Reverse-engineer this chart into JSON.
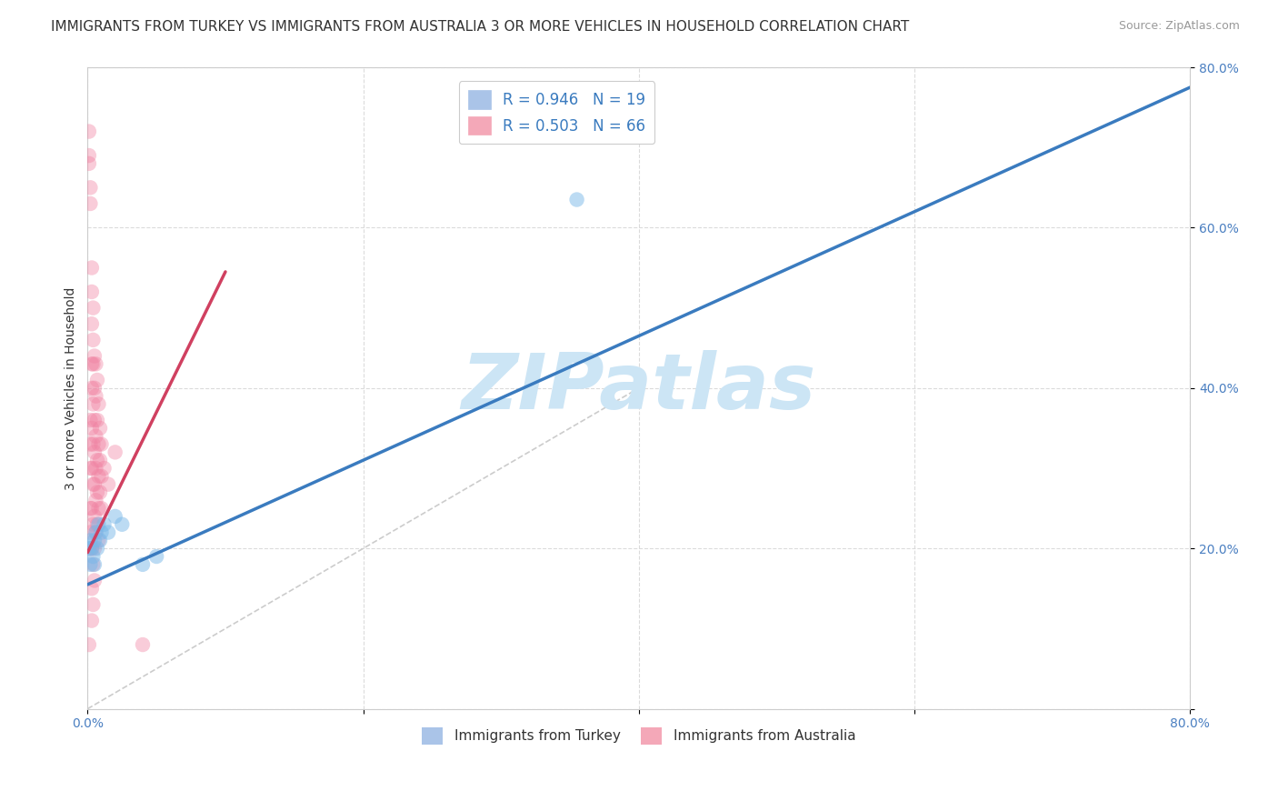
{
  "title": "IMMIGRANTS FROM TURKEY VS IMMIGRANTS FROM AUSTRALIA 3 OR MORE VEHICLES IN HOUSEHOLD CORRELATION CHART",
  "source": "Source: ZipAtlas.com",
  "ylabel": "3 or more Vehicles in Household",
  "xlim": [
    0.0,
    0.8
  ],
  "ylim": [
    0.0,
    0.8
  ],
  "xtick_positions": [
    0.0,
    0.2,
    0.4,
    0.6,
    0.8
  ],
  "ytick_positions": [
    0.0,
    0.2,
    0.4,
    0.6,
    0.8
  ],
  "xticklabels": [
    "0.0%",
    "",
    "",
    "",
    "80.0%"
  ],
  "yticklabels_right": [
    "",
    "20.0%",
    "40.0%",
    "60.0%",
    "80.0%"
  ],
  "legend_top": [
    {
      "label": "R = 0.946   N = 19",
      "color": "#aac4e8"
    },
    {
      "label": "R = 0.503   N = 66",
      "color": "#f4a8b8"
    }
  ],
  "legend_bottom": [
    {
      "label": "Immigrants from Turkey",
      "color": "#aac4e8"
    },
    {
      "label": "Immigrants from Australia",
      "color": "#f4a8b8"
    }
  ],
  "watermark_text": "ZIPatlas",
  "watermark_color": "#cce5f5",
  "turkey_color": "#7ab8e8",
  "australia_color": "#f080a0",
  "turkey_trend": {
    "x": [
      0.0,
      0.8
    ],
    "y": [
      0.155,
      0.775
    ]
  },
  "australia_trend": {
    "x": [
      0.0,
      0.1
    ],
    "y": [
      0.195,
      0.545
    ]
  },
  "ref_line": {
    "x": [
      0.0,
      0.4
    ],
    "y": [
      0.0,
      0.4
    ]
  },
  "turkey_points": [
    [
      0.001,
      0.2
    ],
    [
      0.002,
      0.21
    ],
    [
      0.002,
      0.18
    ],
    [
      0.003,
      0.2
    ],
    [
      0.004,
      0.19
    ],
    [
      0.005,
      0.21
    ],
    [
      0.005,
      0.18
    ],
    [
      0.006,
      0.22
    ],
    [
      0.007,
      0.2
    ],
    [
      0.008,
      0.23
    ],
    [
      0.009,
      0.21
    ],
    [
      0.01,
      0.22
    ],
    [
      0.012,
      0.23
    ],
    [
      0.015,
      0.22
    ],
    [
      0.02,
      0.24
    ],
    [
      0.025,
      0.23
    ],
    [
      0.04,
      0.18
    ],
    [
      0.05,
      0.19
    ],
    [
      0.355,
      0.635
    ]
  ],
  "australia_points": [
    [
      0.001,
      0.72
    ],
    [
      0.001,
      0.69
    ],
    [
      0.001,
      0.68
    ],
    [
      0.002,
      0.65
    ],
    [
      0.002,
      0.63
    ],
    [
      0.002,
      0.36
    ],
    [
      0.002,
      0.33
    ],
    [
      0.002,
      0.3
    ],
    [
      0.002,
      0.25
    ],
    [
      0.002,
      0.22
    ],
    [
      0.002,
      0.2
    ],
    [
      0.003,
      0.55
    ],
    [
      0.003,
      0.52
    ],
    [
      0.003,
      0.48
    ],
    [
      0.003,
      0.43
    ],
    [
      0.003,
      0.4
    ],
    [
      0.003,
      0.35
    ],
    [
      0.003,
      0.3
    ],
    [
      0.003,
      0.25
    ],
    [
      0.003,
      0.2
    ],
    [
      0.003,
      0.15
    ],
    [
      0.003,
      0.11
    ],
    [
      0.004,
      0.5
    ],
    [
      0.004,
      0.46
    ],
    [
      0.004,
      0.43
    ],
    [
      0.004,
      0.38
    ],
    [
      0.004,
      0.33
    ],
    [
      0.004,
      0.28
    ],
    [
      0.004,
      0.23
    ],
    [
      0.004,
      0.18
    ],
    [
      0.004,
      0.13
    ],
    [
      0.005,
      0.44
    ],
    [
      0.005,
      0.4
    ],
    [
      0.005,
      0.36
    ],
    [
      0.005,
      0.32
    ],
    [
      0.005,
      0.28
    ],
    [
      0.005,
      0.24
    ],
    [
      0.005,
      0.2
    ],
    [
      0.005,
      0.16
    ],
    [
      0.006,
      0.43
    ],
    [
      0.006,
      0.39
    ],
    [
      0.006,
      0.34
    ],
    [
      0.006,
      0.3
    ],
    [
      0.006,
      0.26
    ],
    [
      0.006,
      0.22
    ],
    [
      0.007,
      0.41
    ],
    [
      0.007,
      0.36
    ],
    [
      0.007,
      0.31
    ],
    [
      0.007,
      0.27
    ],
    [
      0.007,
      0.23
    ],
    [
      0.008,
      0.38
    ],
    [
      0.008,
      0.33
    ],
    [
      0.008,
      0.29
    ],
    [
      0.008,
      0.25
    ],
    [
      0.008,
      0.21
    ],
    [
      0.009,
      0.35
    ],
    [
      0.009,
      0.31
    ],
    [
      0.009,
      0.27
    ],
    [
      0.01,
      0.33
    ],
    [
      0.01,
      0.29
    ],
    [
      0.01,
      0.25
    ],
    [
      0.012,
      0.3
    ],
    [
      0.015,
      0.28
    ],
    [
      0.02,
      0.32
    ],
    [
      0.04,
      0.08
    ],
    [
      0.001,
      0.08
    ]
  ],
  "background_color": "#ffffff",
  "grid_color": "#d8d8d8",
  "title_fontsize": 11,
  "source_fontsize": 9,
  "axis_label_fontsize": 10,
  "tick_fontsize": 10,
  "legend_fontsize": 12
}
